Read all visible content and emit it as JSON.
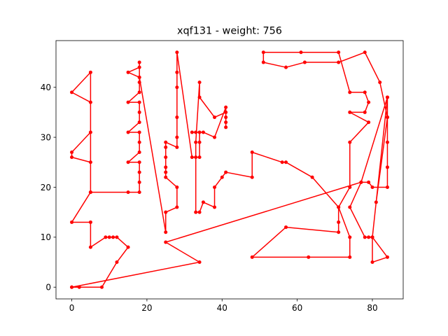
{
  "chart_data": {
    "type": "line",
    "title": "xqf131 - weight: 756",
    "xlabel": "",
    "ylabel": "",
    "xlim": [
      -4.2,
      88.2
    ],
    "ylim": [
      -2.35,
      49.35
    ],
    "xticks": [
      0,
      20,
      40,
      60,
      80
    ],
    "yticks": [
      0,
      10,
      20,
      30,
      40
    ],
    "grid": false,
    "legend": false,
    "series": [
      {
        "color": "#ff0000",
        "marker": "circle",
        "points": [
          [
            0,
            0
          ],
          [
            2,
            0
          ],
          [
            8,
            0
          ],
          [
            12,
            5
          ],
          [
            15,
            8
          ],
          [
            12,
            10
          ],
          [
            11,
            10
          ],
          [
            10,
            10
          ],
          [
            9,
            10
          ],
          [
            5,
            8
          ],
          [
            5,
            13
          ],
          [
            0,
            13
          ],
          [
            5,
            19
          ],
          [
            5,
            25
          ],
          [
            0,
            26
          ],
          [
            0,
            27
          ],
          [
            5,
            31
          ],
          [
            5,
            37
          ],
          [
            0,
            39
          ],
          [
            5,
            43
          ],
          [
            5,
            19
          ],
          [
            15,
            19
          ],
          [
            18,
            19
          ],
          [
            18,
            21
          ],
          [
            18,
            23
          ],
          [
            18,
            25
          ],
          [
            15,
            25
          ],
          [
            18,
            27
          ],
          [
            18,
            29
          ],
          [
            18,
            31
          ],
          [
            15,
            31
          ],
          [
            18,
            33
          ],
          [
            18,
            35
          ],
          [
            18,
            37
          ],
          [
            15,
            37
          ],
          [
            18,
            39
          ],
          [
            18,
            41
          ],
          [
            18,
            42
          ],
          [
            15,
            43
          ],
          [
            18,
            44
          ],
          [
            18,
            45
          ],
          [
            18,
            42
          ],
          [
            25,
            11
          ],
          [
            25,
            15
          ],
          [
            28,
            16
          ],
          [
            28,
            20
          ],
          [
            25,
            22
          ],
          [
            25,
            23
          ],
          [
            25,
            24
          ],
          [
            25,
            26
          ],
          [
            25,
            28
          ],
          [
            25,
            29
          ],
          [
            28,
            28
          ],
          [
            28,
            30
          ],
          [
            28,
            34
          ],
          [
            28,
            40
          ],
          [
            28,
            43
          ],
          [
            28,
            47
          ],
          [
            32,
            26
          ],
          [
            33,
            26
          ],
          [
            34,
            26
          ],
          [
            34,
            29
          ],
          [
            34,
            31
          ],
          [
            33,
            31
          ],
          [
            32,
            31
          ],
          [
            35,
            31
          ],
          [
            38,
            30
          ],
          [
            41,
            36
          ],
          [
            41,
            32
          ],
          [
            41,
            33
          ],
          [
            41,
            34
          ],
          [
            41,
            35
          ],
          [
            38,
            34
          ],
          [
            34,
            38
          ],
          [
            34,
            41
          ],
          [
            33,
            29
          ],
          [
            33,
            15
          ],
          [
            34,
            15
          ],
          [
            35,
            17
          ],
          [
            38,
            16
          ],
          [
            38,
            20
          ],
          [
            40,
            22
          ],
          [
            41,
            23
          ],
          [
            48,
            22
          ],
          [
            48,
            27
          ],
          [
            56,
            25
          ],
          [
            57,
            25
          ],
          [
            64,
            22
          ],
          [
            71,
            16
          ],
          [
            71,
            13
          ],
          [
            71,
            11
          ],
          [
            57,
            12
          ],
          [
            48,
            6
          ],
          [
            63,
            6
          ],
          [
            74,
            6
          ],
          [
            74,
            10
          ],
          [
            71,
            16
          ],
          [
            74,
            20
          ],
          [
            74,
            29
          ],
          [
            79,
            33
          ],
          [
            74,
            35
          ],
          [
            78,
            35
          ],
          [
            79,
            37
          ],
          [
            78,
            39
          ],
          [
            74,
            39
          ],
          [
            71,
            47
          ],
          [
            61,
            47
          ],
          [
            51,
            47
          ],
          [
            51,
            45
          ],
          [
            57,
            44
          ],
          [
            62,
            45
          ],
          [
            71,
            45
          ],
          [
            78,
            47
          ],
          [
            82,
            41
          ],
          [
            84,
            34
          ],
          [
            81,
            17
          ],
          [
            84,
            38
          ],
          [
            84,
            34
          ],
          [
            84,
            29
          ],
          [
            84,
            24
          ],
          [
            84,
            20
          ],
          [
            80,
            20
          ],
          [
            79,
            21
          ],
          [
            77,
            21
          ],
          [
            74,
            16
          ],
          [
            78,
            10
          ],
          [
            79,
            10
          ],
          [
            80,
            10
          ],
          [
            80,
            5
          ],
          [
            84,
            6
          ],
          [
            80,
            10
          ],
          [
            80,
            10
          ],
          [
            84,
            38
          ],
          [
            77,
            21
          ],
          [
            25,
            9
          ],
          [
            34,
            5
          ],
          [
            0,
            0
          ]
        ]
      }
    ]
  }
}
